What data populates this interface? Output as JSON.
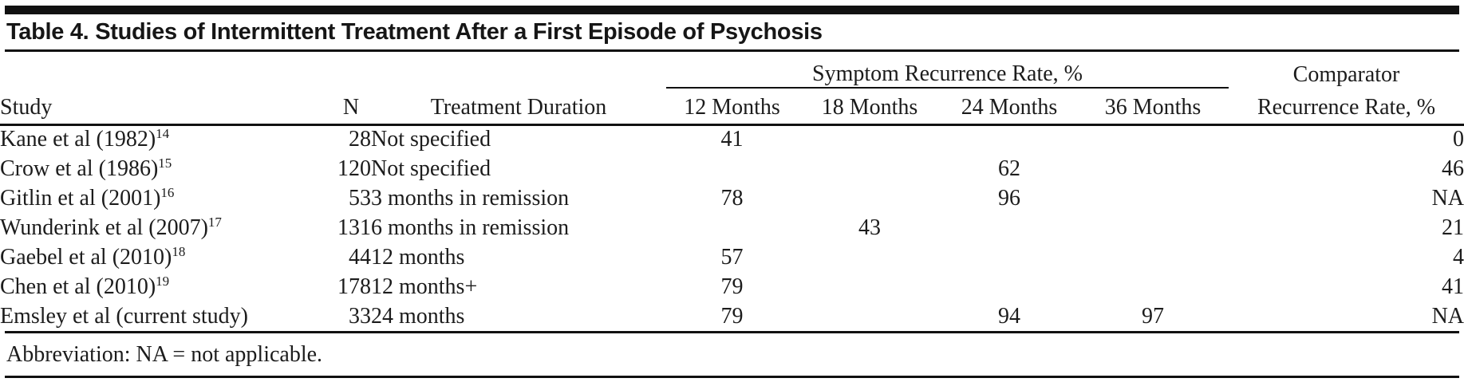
{
  "title": "Table 4. Studies of Intermittent Treatment After a First Episode of Psychosis",
  "table": {
    "col_headers": {
      "study": "Study",
      "n": "N",
      "duration": "Treatment Duration",
      "symptom_group": "Symptom Recurrence Rate, %",
      "months": [
        "12 Months",
        "18 Months",
        "24 Months",
        "36 Months"
      ],
      "comparator_line1": "Comparator",
      "comparator_line2": "Recurrence Rate, %"
    },
    "rows": [
      {
        "study": "Kane et al (1982)",
        "ref": "14",
        "n": "28",
        "duration": "Not specified",
        "m12": "41",
        "m18": "",
        "m24": "",
        "m36": "",
        "comparator": "0"
      },
      {
        "study": "Crow et al (1986)",
        "ref": "15",
        "n": "120",
        "duration": "Not specified",
        "m12": "",
        "m18": "",
        "m24": "62",
        "m36": "",
        "comparator": "46"
      },
      {
        "study": "Gitlin et al (2001)",
        "ref": "16",
        "n": "53",
        "duration": "3 months in remission",
        "m12": "78",
        "m18": "",
        "m24": "96",
        "m36": "",
        "comparator": "NA"
      },
      {
        "study": "Wunderink et al (2007)",
        "ref": "17",
        "n": "131",
        "duration": "6 months in remission",
        "m12": "",
        "m18": "43",
        "m24": "",
        "m36": "",
        "comparator": "21"
      },
      {
        "study": "Gaebel et al (2010)",
        "ref": "18",
        "n": "44",
        "duration": "12 months",
        "m12": "57",
        "m18": "",
        "m24": "",
        "m36": "",
        "comparator": "4"
      },
      {
        "study": "Chen et al (2010)",
        "ref": "19",
        "n": "178",
        "duration": "12 months+",
        "m12": "79",
        "m18": "",
        "m24": "",
        "m36": "",
        "comparator": "41"
      },
      {
        "study": "Emsley et al (current study)",
        "ref": "",
        "n": "33",
        "duration": "24 months",
        "m12": "79",
        "m18": "",
        "m24": "94",
        "m36": "97",
        "comparator": "NA"
      }
    ],
    "footnote": "Abbreviation: NA = not applicable."
  },
  "colors": {
    "text": "#1c1c1c",
    "rule": "#111111",
    "background": "#ffffff"
  }
}
